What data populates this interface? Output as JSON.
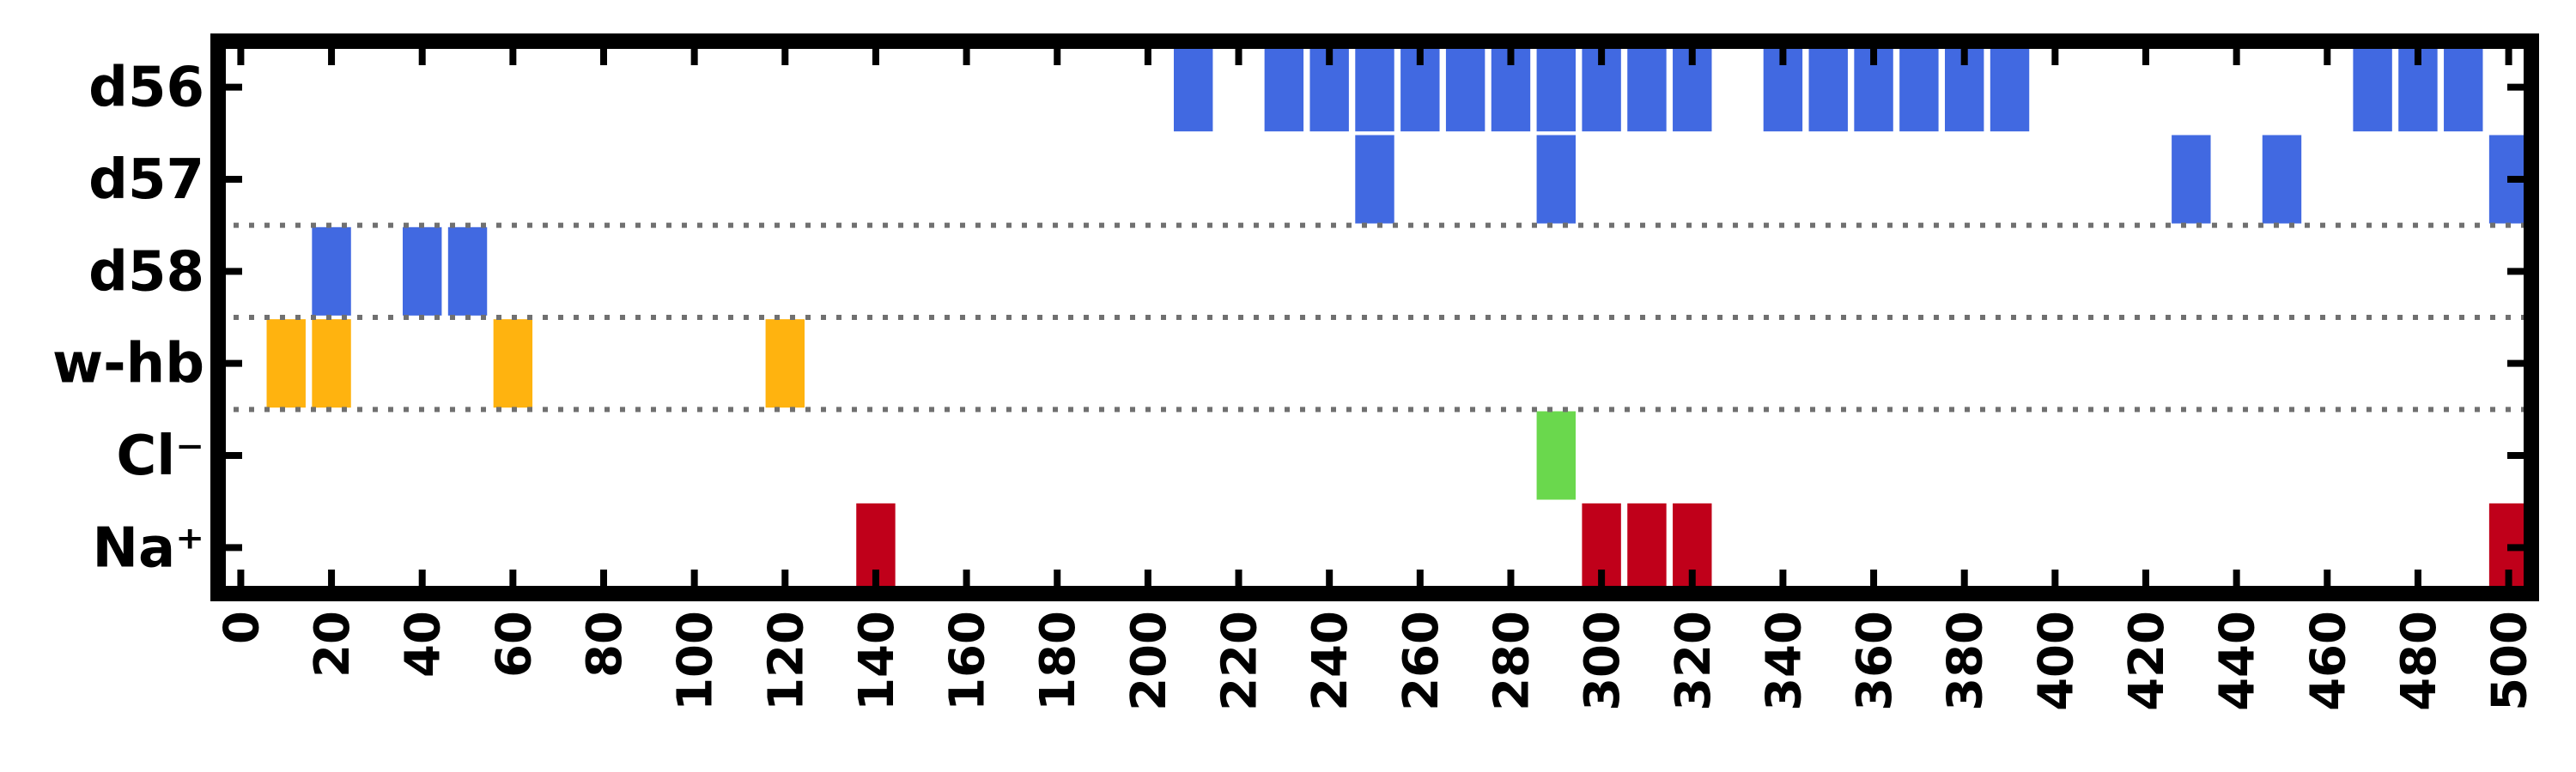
{
  "chart_data": {
    "type": "event-raster",
    "xlim": [
      -5,
      505
    ],
    "x_ticks": [
      0,
      20,
      40,
      60,
      80,
      100,
      120,
      140,
      160,
      180,
      200,
      220,
      240,
      260,
      280,
      300,
      320,
      340,
      360,
      380,
      400,
      420,
      440,
      460,
      480,
      500
    ],
    "tick_labels": [
      "0",
      "20",
      "40",
      "60",
      "80",
      "100",
      "120",
      "140",
      "160",
      "180",
      "200",
      "220",
      "240",
      "260",
      "280",
      "300",
      "320",
      "340",
      "360",
      "380",
      "400",
      "420",
      "440",
      "460",
      "480",
      "500"
    ],
    "bin_width": 10,
    "rows": [
      {
        "label": "d56",
        "color": "#4169E1",
        "events": [
          210,
          230,
          240,
          250,
          260,
          270,
          280,
          290,
          300,
          310,
          320,
          340,
          350,
          360,
          370,
          380,
          390,
          470,
          480,
          490
        ]
      },
      {
        "label": "d57",
        "color": "#4169E1",
        "events": [
          250,
          290,
          430,
          450,
          500
        ]
      },
      {
        "label": "d58",
        "color": "#4169E1",
        "events": [
          20,
          40,
          50
        ]
      },
      {
        "label": "w-hb",
        "color": "#FFB30F",
        "events": [
          10,
          20,
          60,
          120
        ]
      },
      {
        "label": "Cl⁻",
        "color": "#6AD84D",
        "events": [
          290
        ]
      },
      {
        "label": "Na⁺",
        "color": "#C0001A",
        "events": [
          140,
          300,
          310,
          320,
          500
        ]
      }
    ],
    "separators_after_rows": [
      2,
      3,
      4
    ],
    "grid": false
  }
}
